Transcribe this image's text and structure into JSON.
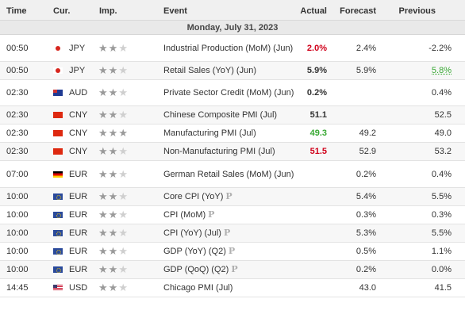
{
  "colors": {
    "red": "#d0021b",
    "green": "#3aa935",
    "header_bg": "#f0f0f0"
  },
  "header": {
    "time": "Time",
    "cur": "Cur.",
    "imp": "Imp.",
    "event": "Event",
    "actual": "Actual",
    "forecast": "Forecast",
    "previous": "Previous"
  },
  "day_label": "Monday, July 31, 2023",
  "rows": [
    {
      "time": "00:50",
      "flag": "jp",
      "currency": "JPY",
      "stars": 2,
      "event": "Industrial Production (MoM) (Jun)",
      "preliminary": false,
      "actual": "2.0%",
      "actual_color": "red",
      "forecast": "2.4%",
      "previous": "-2.2%",
      "previous_style": ""
    },
    {
      "time": "00:50",
      "flag": "jp",
      "currency": "JPY",
      "stars": 2,
      "event": "Retail Sales (YoY) (Jun)",
      "preliminary": false,
      "actual": "5.9%",
      "actual_color": "",
      "forecast": "5.9%",
      "previous": "5.8%",
      "previous_style": "green-ul"
    },
    {
      "time": "02:30",
      "flag": "au",
      "currency": "AUD",
      "stars": 2,
      "event": "Private Sector Credit (MoM) (Jun)",
      "preliminary": false,
      "actual": "0.2%",
      "actual_color": "",
      "forecast": "",
      "previous": "0.4%",
      "previous_style": ""
    },
    {
      "time": "02:30",
      "flag": "cn",
      "currency": "CNY",
      "stars": 2,
      "event": "Chinese Composite PMI (Jul)",
      "preliminary": false,
      "actual": "51.1",
      "actual_color": "",
      "forecast": "",
      "previous": "52.5",
      "previous_style": ""
    },
    {
      "time": "02:30",
      "flag": "cn",
      "currency": "CNY",
      "stars": 3,
      "event": "Manufacturing PMI (Jul)",
      "preliminary": false,
      "actual": "49.3",
      "actual_color": "green",
      "forecast": "49.2",
      "previous": "49.0",
      "previous_style": ""
    },
    {
      "time": "02:30",
      "flag": "cn",
      "currency": "CNY",
      "stars": 2,
      "event": "Non-Manufacturing PMI (Jul)",
      "preliminary": false,
      "actual": "51.5",
      "actual_color": "red",
      "forecast": "52.9",
      "previous": "53.2",
      "previous_style": ""
    },
    {
      "time": "07:00",
      "flag": "de",
      "currency": "EUR",
      "stars": 2,
      "event": "German Retail Sales (MoM) (Jun)",
      "preliminary": false,
      "actual": "",
      "actual_color": "",
      "forecast": "0.2%",
      "previous": "0.4%",
      "previous_style": ""
    },
    {
      "time": "10:00",
      "flag": "eu",
      "currency": "EUR",
      "stars": 2,
      "event": "Core CPI (YoY)",
      "preliminary": true,
      "actual": "",
      "actual_color": "",
      "forecast": "5.4%",
      "previous": "5.5%",
      "previous_style": ""
    },
    {
      "time": "10:00",
      "flag": "eu",
      "currency": "EUR",
      "stars": 2,
      "event": "CPI (MoM)",
      "preliminary": true,
      "actual": "",
      "actual_color": "",
      "forecast": "0.3%",
      "previous": "0.3%",
      "previous_style": ""
    },
    {
      "time": "10:00",
      "flag": "eu",
      "currency": "EUR",
      "stars": 2,
      "event": "CPI (YoY) (Jul)",
      "preliminary": true,
      "actual": "",
      "actual_color": "",
      "forecast": "5.3%",
      "previous": "5.5%",
      "previous_style": ""
    },
    {
      "time": "10:00",
      "flag": "eu",
      "currency": "EUR",
      "stars": 2,
      "event": "GDP (YoY) (Q2)",
      "preliminary": true,
      "actual": "",
      "actual_color": "",
      "forecast": "0.5%",
      "previous": "1.1%",
      "previous_style": ""
    },
    {
      "time": "10:00",
      "flag": "eu",
      "currency": "EUR",
      "stars": 2,
      "event": "GDP (QoQ) (Q2)",
      "preliminary": true,
      "actual": "",
      "actual_color": "",
      "forecast": "0.2%",
      "previous": "0.0%",
      "previous_style": ""
    },
    {
      "time": "14:45",
      "flag": "us",
      "currency": "USD",
      "stars": 2,
      "event": "Chicago PMI (Jul)",
      "preliminary": false,
      "actual": "",
      "actual_color": "",
      "forecast": "43.0",
      "previous": "41.5",
      "previous_style": ""
    }
  ],
  "preliminary_mark": "P"
}
